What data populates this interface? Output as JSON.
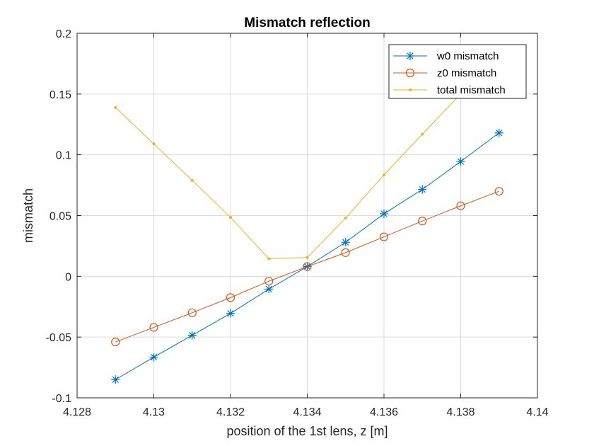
{
  "chart_data": {
    "type": "line",
    "title": "Mismatch reflection",
    "xlabel": "position of the 1st lens, z [m]",
    "ylabel": "mismatch",
    "xlim": [
      4.128,
      4.14
    ],
    "ylim": [
      -0.1,
      0.2
    ],
    "xticks": [
      4.128,
      4.13,
      4.132,
      4.134,
      4.136,
      4.138,
      4.14
    ],
    "xtick_labels": [
      "4.128",
      "4.13",
      "4.132",
      "4.134",
      "4.136",
      "4.138",
      "4.14"
    ],
    "yticks": [
      -0.1,
      -0.05,
      0,
      0.05,
      0.1,
      0.15,
      0.2
    ],
    "ytick_labels": [
      "-0.1",
      "-0.05",
      "0",
      "0.05",
      "0.1",
      "0.15",
      "0.2"
    ],
    "grid": true,
    "legend_position": "top-right",
    "x": [
      4.129,
      4.13,
      4.131,
      4.132,
      4.133,
      4.134,
      4.135,
      4.136,
      4.137,
      4.138,
      4.139
    ],
    "series": [
      {
        "name": "w0 mismatch",
        "color": "#0072BD",
        "marker": "asterisk",
        "values": [
          -0.085,
          -0.0665,
          -0.0485,
          -0.0305,
          -0.0105,
          0.008,
          0.028,
          0.0515,
          0.0715,
          0.0945,
          0.118
        ]
      },
      {
        "name": "z0 mismatch",
        "color": "#D95319",
        "marker": "circle",
        "values": [
          -0.054,
          -0.042,
          -0.03,
          -0.0175,
          -0.004,
          0.008,
          0.0195,
          0.0325,
          0.0455,
          0.058,
          0.07
        ]
      },
      {
        "name": "total mismatch",
        "color": "#EDB120",
        "marker": "point",
        "values": [
          0.139,
          0.109,
          0.079,
          0.0485,
          0.0145,
          0.0155,
          0.048,
          0.0835,
          0.117,
          0.15,
          0.186
        ]
      }
    ]
  }
}
